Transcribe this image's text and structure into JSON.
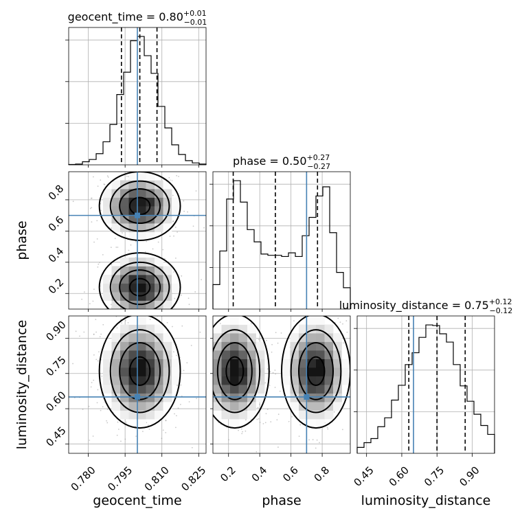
{
  "chart_data": {
    "type": "corner",
    "parameters": [
      "geocent_time",
      "phase",
      "luminosity_distance"
    ],
    "truths": {
      "geocent_time": 0.8,
      "phase": 0.7,
      "luminosity_distance": 0.65
    },
    "truth_color": "#4682b4",
    "titles": [
      {
        "param": "geocent_time",
        "prefix": "geocent_time = 0.80",
        "plus": "+0.01",
        "minus": "−0.01"
      },
      {
        "param": "phase",
        "prefix": "phase = 0.50",
        "plus": "+0.27",
        "minus": "−0.27"
      },
      {
        "param": "luminosity_distance",
        "prefix": "luminosity_distance = 0.75",
        "plus": "+0.12",
        "minus": "−0.12"
      }
    ],
    "axes": {
      "geocent_time": {
        "range": [
          0.772,
          0.828
        ],
        "ticks": [
          0.78,
          0.795,
          0.81,
          0.825
        ],
        "tick_labels": [
          "0.780",
          "0.795",
          "0.810",
          "0.825"
        ],
        "label": "geocent_time"
      },
      "phase": {
        "range": [
          0.1,
          0.98
        ],
        "ticks": [
          0.2,
          0.4,
          0.6,
          0.8
        ],
        "tick_labels": [
          "0.2",
          "0.4",
          "0.6",
          "0.8"
        ],
        "label": "phase"
      },
      "luminosity_distance": {
        "range": [
          0.41,
          0.995
        ],
        "ticks": [
          0.45,
          0.6,
          0.75,
          0.9
        ],
        "tick_labels": [
          "0.45",
          "0.60",
          "0.75",
          "0.90"
        ],
        "label": "luminosity_distance"
      }
    },
    "marginals": [
      {
        "param": "geocent_time",
        "quantiles": [
          0.7935,
          0.801,
          0.808
        ],
        "bins": [
          0.772,
          0.7748,
          0.7776,
          0.7804,
          0.7832,
          0.786,
          0.7888,
          0.7916,
          0.7944,
          0.7972,
          0.8,
          0.8028,
          0.8056,
          0.8084,
          0.8112,
          0.814,
          0.8168,
          0.8196,
          0.8224,
          0.8252,
          0.828
        ],
        "counts": [
          1,
          2,
          8,
          14,
          29,
          60,
          105,
          183,
          241,
          323,
          334,
          284,
          238,
          152,
          96,
          52,
          27,
          11,
          5,
          2
        ]
      },
      {
        "param": "phase",
        "quantiles": [
          0.23,
          0.5,
          0.77
        ],
        "bins": [
          0.1,
          0.144,
          0.188,
          0.232,
          0.276,
          0.32,
          0.364,
          0.408,
          0.452,
          0.496,
          0.54,
          0.584,
          0.628,
          0.672,
          0.716,
          0.76,
          0.804,
          0.848,
          0.892,
          0.936,
          0.98
        ],
        "counts": [
          40,
          95,
          180,
          210,
          175,
          130,
          110,
          90,
          88,
          88,
          86,
          92,
          86,
          120,
          150,
          185,
          200,
          125,
          60,
          35
        ]
      },
      {
        "param": "luminosity_distance",
        "quantiles": [
          0.63,
          0.75,
          0.87
        ],
        "bins": [
          0.41,
          0.43925,
          0.4685,
          0.49775,
          0.527,
          0.55625,
          0.5855,
          0.61475,
          0.644,
          0.67325,
          0.7025,
          0.73175,
          0.761,
          0.79025,
          0.8195,
          0.84875,
          0.878,
          0.90725,
          0.9365,
          0.96575,
          0.995
        ],
        "counts": [
          10,
          18,
          25,
          45,
          60,
          90,
          115,
          150,
          170,
          196,
          217,
          216,
          202,
          188,
          150,
          114,
          88,
          66,
          47,
          32
        ]
      }
    ],
    "joint": [
      {
        "x": "geocent_time",
        "y": "phase",
        "modes": [
          {
            "cx": 0.801,
            "cy": 0.24,
            "sx": 0.0075,
            "sy": 0.1,
            "w": 1.0
          },
          {
            "cx": 0.801,
            "cy": 0.76,
            "sx": 0.0075,
            "sy": 0.1,
            "w": 1.0
          }
        ]
      },
      {
        "x": "geocent_time",
        "y": "luminosity_distance",
        "modes": [
          {
            "cx": 0.801,
            "cy": 0.76,
            "sx": 0.0075,
            "sy": 0.11,
            "w": 1.0
          }
        ]
      },
      {
        "x": "phase",
        "y": "luminosity_distance",
        "modes": [
          {
            "cx": 0.24,
            "cy": 0.76,
            "sx": 0.1,
            "sy": 0.11,
            "w": 1.0
          },
          {
            "cx": 0.76,
            "cy": 0.76,
            "sx": 0.1,
            "sy": 0.11,
            "w": 1.0
          }
        ]
      }
    ]
  }
}
